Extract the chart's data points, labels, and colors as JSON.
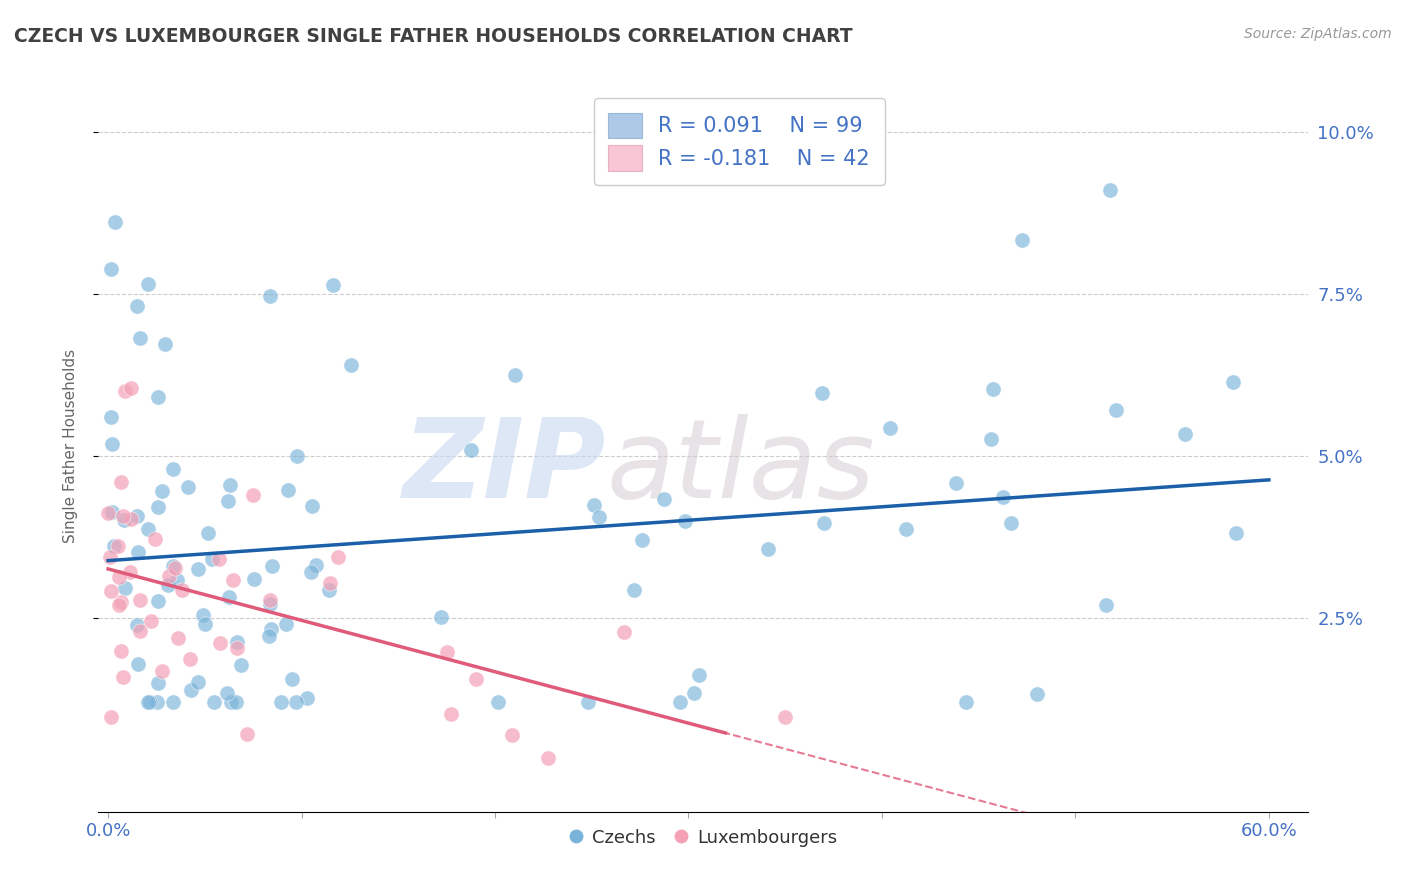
{
  "title": "CZECH VS LUXEMBOURGER SINGLE FATHER HOUSEHOLDS CORRELATION CHART",
  "source": "Source: ZipAtlas.com",
  "ylabel": "Single Father Households",
  "yticks": [
    "2.5%",
    "5.0%",
    "7.5%",
    "10.0%"
  ],
  "ytick_vals": [
    0.025,
    0.05,
    0.075,
    0.1
  ],
  "xlim": [
    -0.005,
    0.62
  ],
  "ylim": [
    -0.005,
    0.108
  ],
  "czech_color": "#7ab3d9",
  "luxembourger_color": "#f4a0b5",
  "czech_line_color": "#1a5fa8",
  "luxembourger_line_color": "#e05a7a",
  "legend_czech_label": "R = 0.091    N = 99",
  "legend_lux_label": "R = -0.181    N = 42",
  "legend_text_color": "#4472c4",
  "legend_czech_display": "Czechs",
  "legend_lux_display": "Luxembourgers",
  "watermark_zip": "ZIP",
  "watermark_atlas": "atlas",
  "czech_R": 0.091,
  "czech_N": 99,
  "lux_R": -0.181,
  "lux_N": 42,
  "background_color": "#ffffff",
  "grid_color": "#cccccc",
  "title_color": "#404040",
  "tick_label_color": "#4472c4"
}
